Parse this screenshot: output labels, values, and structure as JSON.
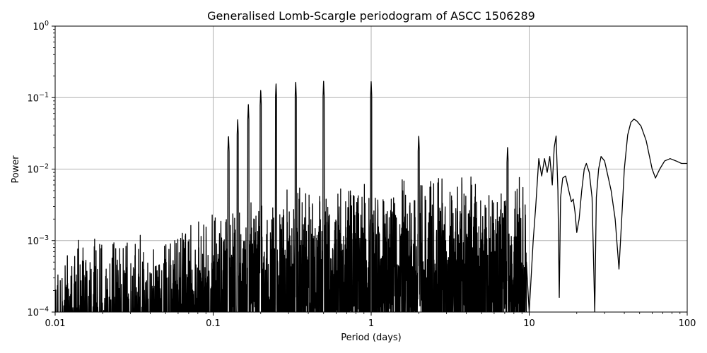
{
  "chart_data": {
    "type": "line",
    "title": "Generalised Lomb-Scargle periodogram of ASCC 1506289",
    "xlabel": "Period (days)",
    "ylabel": "Power",
    "xscale": "log",
    "yscale": "log",
    "xlim": [
      0.01,
      100
    ],
    "ylim": [
      0.0001,
      1
    ],
    "grid": true,
    "line_color": "#000000",
    "grid_color": "#b0b0b0",
    "xticks": [
      {
        "value": 0.01,
        "label": "0.01"
      },
      {
        "value": 0.1,
        "label": "0.1"
      },
      {
        "value": 1,
        "label": "1"
      },
      {
        "value": 10,
        "label": "10"
      },
      {
        "value": 100,
        "label": "100"
      }
    ],
    "yticks": [
      {
        "value": 0.0001,
        "base": "10",
        "exp": "−4"
      },
      {
        "value": 0.001,
        "base": "10",
        "exp": "−3"
      },
      {
        "value": 0.01,
        "base": "10",
        "exp": "−2"
      },
      {
        "value": 0.1,
        "base": "10",
        "exp": "−1"
      },
      {
        "value": 1,
        "base": "10",
        "exp": "0"
      }
    ],
    "peaks": [
      {
        "period": 0.2,
        "power": 0.13
      },
      {
        "period": 0.25,
        "power": 0.16
      },
      {
        "period": 0.333,
        "power": 0.17
      },
      {
        "period": 0.5,
        "power": 0.17
      },
      {
        "period": 1.0,
        "power": 0.17
      },
      {
        "period": 0.167,
        "power": 0.08
      },
      {
        "period": 0.143,
        "power": 0.05
      },
      {
        "period": 0.125,
        "power": 0.03
      },
      {
        "period": 2.0,
        "power": 0.03
      },
      {
        "period": 7.3,
        "power": 0.021
      },
      {
        "period": 13.5,
        "power": 0.015
      },
      {
        "period": 14.8,
        "power": 0.03
      },
      {
        "period": 23.0,
        "power": 0.012
      },
      {
        "period": 30.0,
        "power": 0.015
      },
      {
        "period": 46.0,
        "power": 0.05
      },
      {
        "period": 100.0,
        "power": 0.012
      }
    ],
    "troughs": [
      {
        "period": 15.5,
        "power": 0.00016
      },
      {
        "period": 20.0,
        "power": 0.0013
      },
      {
        "period": 26.0,
        "power": 0.0001
      },
      {
        "period": 37.0,
        "power": 0.0004
      },
      {
        "period": 62.0,
        "power": 0.0075
      }
    ],
    "series": [
      {
        "x": [
          9.6,
          10.0,
          10.6,
          11.0,
          11.5,
          12.0,
          12.5,
          13.0,
          13.5,
          14.0,
          14.4,
          14.8,
          15.2,
          15.5,
          15.8,
          16.3,
          17.0,
          17.8,
          18.5,
          19.0,
          19.5,
          20.0,
          20.7,
          21.5,
          22.3,
          23.0,
          24.0,
          25.0,
          26.0,
          26.6,
          27.5,
          28.5,
          30.0,
          31.5,
          33.0,
          35.0,
          37.0,
          38.5,
          40.0,
          42.0,
          44.0,
          46.0,
          48.0,
          51.0,
          55.0,
          60.0,
          63.0,
          67.0,
          72.0,
          78.0,
          85.0,
          92.0,
          100.0
        ],
        "y": [
          0.0005,
          0.0001,
          0.001,
          0.003,
          0.014,
          0.008,
          0.014,
          0.009,
          0.015,
          0.006,
          0.02,
          0.029,
          0.005,
          0.00016,
          0.004,
          0.0075,
          0.008,
          0.005,
          0.0035,
          0.0038,
          0.0025,
          0.0013,
          0.002,
          0.005,
          0.01,
          0.012,
          0.009,
          0.004,
          0.0001,
          0.004,
          0.01,
          0.015,
          0.013,
          0.008,
          0.005,
          0.002,
          0.0004,
          0.002,
          0.01,
          0.03,
          0.045,
          0.05,
          0.047,
          0.04,
          0.025,
          0.01,
          0.0075,
          0.01,
          0.013,
          0.014,
          0.013,
          0.012,
          0.012
        ]
      }
    ]
  }
}
